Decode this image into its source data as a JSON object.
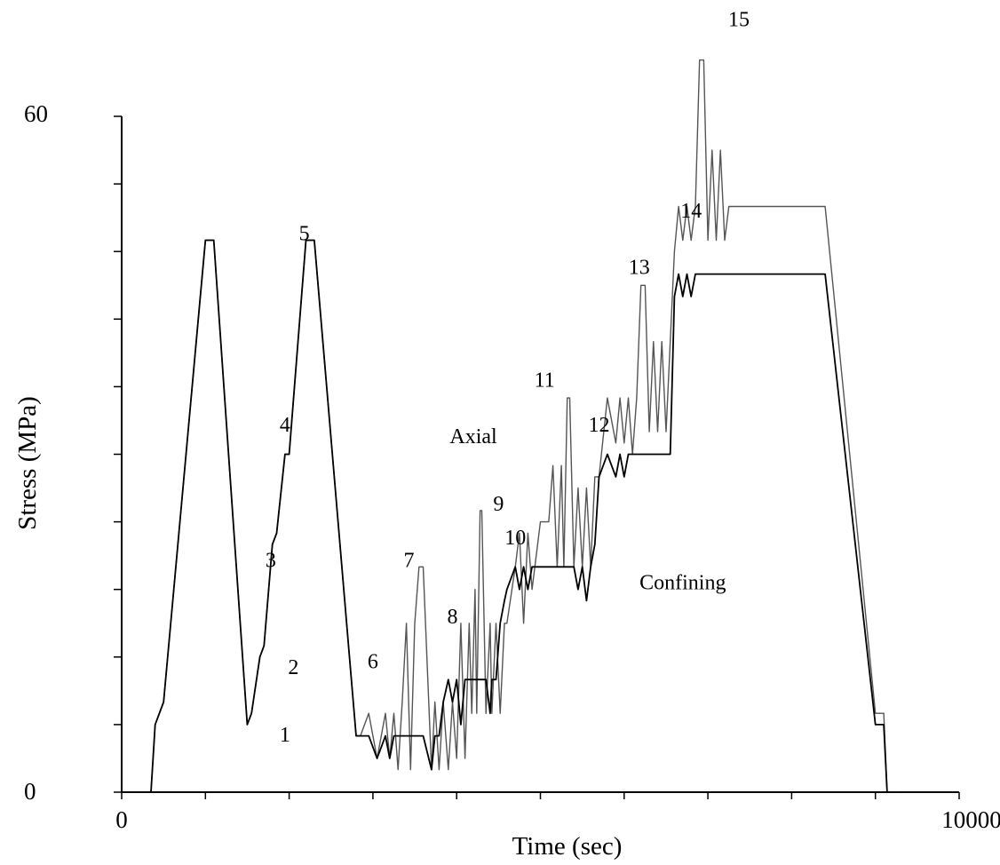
{
  "chart_data": {
    "type": "line",
    "title": "",
    "xlabel": "Time (sec)",
    "ylabel": "Stress (MPa)",
    "xlim": [
      0,
      10000
    ],
    "ylim": [
      0,
      60
    ],
    "x_ticks_labeled": [
      0,
      10000
    ],
    "y_ticks_labeled": [
      0,
      60
    ],
    "x_minor_tick_step": 1000,
    "y_minor_tick_step": 6,
    "grid": false,
    "axial_line_color": "#555555",
    "confining_line_color": "#000000",
    "series": [
      {
        "name": "Axial",
        "x": [
          0,
          350,
          400,
          500,
          1000,
          1100,
          1500,
          1550,
          1650,
          1700,
          1800,
          1850,
          1950,
          2000,
          2200,
          2300,
          2800,
          2850,
          2950,
          3050,
          3150,
          3200,
          3250,
          3300,
          3350,
          3400,
          3450,
          3500,
          3550,
          3600,
          3700,
          3740,
          3790,
          3840,
          3900,
          3950,
          4000,
          4050,
          4100,
          4150,
          4180,
          4220,
          4240,
          4280,
          4300,
          4350,
          4400,
          4420,
          4470,
          4520,
          4570,
          4600,
          4700,
          4750,
          4800,
          4850,
          4900,
          5000,
          5100,
          5150,
          5200,
          5250,
          5280,
          5320,
          5350,
          5400,
          5450,
          5500,
          5550,
          5600,
          5650,
          5700,
          5800,
          5900,
          5950,
          6000,
          6050,
          6100,
          6150,
          6200,
          6250,
          6300,
          6350,
          6400,
          6450,
          6500,
          6550,
          6600,
          6650,
          6700,
          6750,
          6800,
          6850,
          6900,
          6950,
          7000,
          7050,
          7100,
          7150,
          7200,
          7250,
          7300,
          7350,
          8400,
          9000,
          9100,
          9140,
          9200,
          9300
        ],
        "y": [
          0,
          0,
          6,
          8,
          49,
          49,
          6,
          7,
          12,
          13,
          22,
          23,
          30,
          30,
          49,
          49,
          5,
          5,
          7,
          3,
          7,
          3,
          7,
          2,
          8,
          15,
          2,
          15,
          20,
          20,
          2,
          8,
          2,
          8,
          2,
          8,
          3,
          15,
          3,
          15,
          7,
          18,
          7,
          25,
          25,
          7,
          15,
          7,
          15,
          7,
          15,
          15,
          20,
          23,
          15,
          23,
          18,
          24,
          24,
          29,
          20,
          29,
          20,
          35,
          35,
          20,
          27,
          20,
          27,
          20,
          28,
          28,
          35,
          31,
          35,
          31,
          35,
          30,
          35,
          45,
          45,
          32,
          40,
          32,
          40,
          32,
          40,
          48,
          52,
          49,
          52,
          49,
          52,
          65,
          65,
          49,
          57,
          49,
          57,
          49,
          52,
          52,
          52,
          52,
          7,
          7,
          0,
          0,
          0
        ]
      },
      {
        "name": "Confining",
        "x": [
          0,
          350,
          400,
          500,
          1000,
          1100,
          1500,
          1550,
          1650,
          1700,
          1800,
          1850,
          1950,
          2000,
          2200,
          2300,
          2800,
          2850,
          2950,
          3050,
          3150,
          3200,
          3250,
          3300,
          3350,
          3400,
          3450,
          3500,
          3550,
          3600,
          3700,
          3740,
          3790,
          3840,
          3900,
          3950,
          4000,
          4050,
          4100,
          4150,
          4180,
          4220,
          4240,
          4280,
          4300,
          4350,
          4400,
          4420,
          4470,
          4520,
          4570,
          4600,
          4700,
          4750,
          4800,
          4850,
          4900,
          5000,
          5100,
          5150,
          5200,
          5250,
          5280,
          5320,
          5350,
          5400,
          5450,
          5500,
          5550,
          5600,
          5650,
          5700,
          5800,
          5900,
          5950,
          6000,
          6050,
          6100,
          6150,
          6200,
          6250,
          6300,
          6350,
          6400,
          6450,
          6500,
          6550,
          6600,
          6650,
          6700,
          6750,
          6800,
          6850,
          6900,
          6950,
          7000,
          7050,
          7100,
          7150,
          7200,
          7250,
          7300,
          7350,
          8400,
          9000,
          9100,
          9140,
          9200,
          9300
        ],
        "y": [
          0,
          0,
          6,
          8,
          49,
          49,
          6,
          7,
          12,
          13,
          22,
          23,
          30,
          30,
          49,
          49,
          5,
          5,
          5,
          3,
          5,
          3,
          5,
          5,
          5,
          5,
          5,
          5,
          5,
          5,
          2,
          5,
          5,
          8,
          10,
          8,
          10,
          6,
          10,
          10,
          10,
          10,
          10,
          10,
          10,
          10,
          7,
          10,
          10,
          15,
          17,
          18,
          20,
          18,
          20,
          18,
          20,
          20,
          20,
          20,
          20,
          20,
          20,
          20,
          20,
          20,
          18,
          20,
          17,
          20,
          22,
          28,
          30,
          28,
          30,
          28,
          30,
          30,
          30,
          30,
          30,
          30,
          30,
          30,
          30,
          30,
          30,
          44,
          46,
          44,
          46,
          44,
          46,
          46,
          46,
          46,
          46,
          46,
          46,
          46,
          46,
          46,
          46,
          46,
          6,
          6,
          0,
          0,
          0
        ]
      }
    ],
    "annotations": [
      {
        "text": "1",
        "x": 1950,
        "y": 4.5
      },
      {
        "text": "2",
        "x": 2050,
        "y": 10.5
      },
      {
        "text": "3",
        "x": 1780,
        "y": 20
      },
      {
        "text": "4",
        "x": 1950,
        "y": 32
      },
      {
        "text": "5",
        "x": 2180,
        "y": 49
      },
      {
        "text": "6",
        "x": 3000,
        "y": 11
      },
      {
        "text": "7",
        "x": 3430,
        "y": 20
      },
      {
        "text": "8",
        "x": 3950,
        "y": 15
      },
      {
        "text": "9",
        "x": 4500,
        "y": 25
      },
      {
        "text": "10",
        "x": 4700,
        "y": 22
      },
      {
        "text": "11",
        "x": 5050,
        "y": 36
      },
      {
        "text": "12",
        "x": 5700,
        "y": 32
      },
      {
        "text": "13",
        "x": 6180,
        "y": 46
      },
      {
        "text": "14",
        "x": 6800,
        "y": 51
      },
      {
        "text": "15",
        "x": 7370,
        "y": 68
      },
      {
        "text": "Axial",
        "x": 4200,
        "y": 31
      },
      {
        "text": "Confining",
        "x": 6700,
        "y": 18
      }
    ]
  }
}
